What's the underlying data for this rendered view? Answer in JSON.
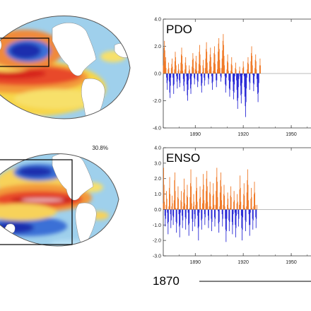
{
  "maps": [
    {
      "pct_label": ""
    },
    {
      "pct_label": "30.8%"
    }
  ],
  "timeline_label": "1870",
  "colors": {
    "positive": "#f07a28",
    "negative": "#2b2bd6",
    "ocean_base": "#9fd0ec"
  },
  "chart_data": [
    {
      "type": "bar",
      "title": "PDO",
      "ylim": [
        -4.0,
        4.0
      ],
      "ytick_labels": [
        "4.0",
        "2.0",
        "0.0",
        "-2.0",
        "-4.0"
      ],
      "ytick_values": [
        4.0,
        2.0,
        0.0,
        -2.0,
        -4.0
      ],
      "xlim": [
        1870,
        1965
      ],
      "xtick_labels": [
        "1890",
        "1920",
        "1950"
      ],
      "xtick_values": [
        1890,
        1920,
        1950
      ],
      "positive_color": "#f07a28",
      "negative_color": "#2b2bd6",
      "start_year": 1870,
      "months_per_bar": 3,
      "values": [
        0.6,
        1.5,
        1.9,
        2.4,
        1.7,
        0.9,
        1.2,
        0.4,
        -0.3,
        -0.7,
        -1.2,
        -0.5,
        0.3,
        0.8,
        0.4,
        -0.6,
        -1.4,
        -1.8,
        -0.9,
        -0.3,
        0.4,
        0.7,
        1.1,
        0.5,
        -0.3,
        -0.9,
        -1.5,
        -0.8,
        0.3,
        0.9,
        1.6,
        1.2,
        0.6,
        -0.2,
        -0.6,
        -1.1,
        -0.4,
        0.2,
        0.7,
        0.3,
        -0.5,
        -1.0,
        -0.7,
        0.2,
        0.8,
        1.4,
        1.9,
        1.3,
        0.7,
        0.2,
        -0.4,
        -0.9,
        -1.3,
        -0.6,
        0.3,
        0.8,
        1.2,
        0.6,
        -0.2,
        -0.8,
        -1.6,
        -2.0,
        -1.2,
        -0.5,
        0.2,
        0.6,
        0.3,
        -0.4,
        -1.1,
        -1.5,
        -0.8,
        -0.2,
        0.5,
        1.0,
        1.5,
        1.1,
        0.4,
        -0.3,
        -0.8,
        -0.4,
        0.3,
        0.9,
        1.3,
        0.8,
        0.2,
        -0.5,
        -1.0,
        -0.6,
        0.2,
        0.7,
        1.6,
        2.1,
        1.4,
        0.6,
        -0.2,
        -0.9,
        -1.4,
        -0.7,
        0.1,
        0.6,
        1.0,
        0.4,
        -0.3,
        -0.9,
        -0.5,
        0.4,
        1.1,
        1.8,
        2.3,
        1.6,
        0.8,
        0.2,
        -0.3,
        -0.8,
        -0.4,
        0.3,
        0.9,
        1.4,
        1.9,
        1.2,
        0.5,
        -0.2,
        -0.7,
        -1.2,
        -0.6,
        0.2,
        0.8,
        1.5,
        2.0,
        1.4,
        0.7,
        0.1,
        -0.5,
        -1.0,
        -0.5,
        0.3,
        0.9,
        1.6,
        2.2,
        2.6,
        1.8,
        1.0,
        0.4,
        -0.2,
        -0.6,
        -0.3,
        0.4,
        1.1,
        1.7,
        2.4,
        2.9,
        2.1,
        1.3,
        0.6,
        -0.2,
        -0.8,
        -1.4,
        -0.9,
        -0.3,
        0.3,
        0.9,
        1.4,
        0.8,
        0.2,
        -0.5,
        -1.1,
        -1.7,
        -1.2,
        -0.6,
        0.2,
        0.7,
        1.2,
        0.6,
        0.1,
        -0.6,
        -1.3,
        -1.9,
        -1.4,
        -0.8,
        -0.2,
        0.4,
        0.8,
        0.3,
        -0.5,
        -1.2,
        -2.0,
        -2.6,
        -1.8,
        -1.0,
        -0.4,
        0.2,
        0.5,
        -0.2,
        -0.9,
        -1.6,
        -2.2,
        -1.5,
        -0.7,
        -0.1,
        0.4,
        0.9,
        0.5,
        -0.2,
        -1.0,
        -1.7,
        -2.4,
        -3.2,
        -2.1,
        -1.1,
        -0.3,
        0.3,
        0.8,
        1.2,
        0.7,
        0.1,
        -0.6,
        -1.2,
        -0.7,
        0.1,
        0.9,
        1.5,
        2.0,
        1.3,
        0.6,
        -0.1,
        -0.7,
        -1.3,
        -0.8,
        -0.2,
        0.4,
        1.0,
        1.4,
        0.9,
        0.3,
        -0.4,
        -1.0,
        -1.5,
        -2.1,
        -1.4,
        -0.7,
        0.0,
        0.6,
        1.1,
        0.6
      ]
    },
    {
      "type": "bar",
      "title": "ENSO",
      "ylim": [
        -3.0,
        4.0
      ],
      "ytick_labels": [
        "4.0",
        "3.0",
        "2.0",
        "1.0",
        "0.0",
        "-1.0",
        "-2.0",
        "-3.0"
      ],
      "ytick_values": [
        4.0,
        3.0,
        2.0,
        1.0,
        0.0,
        -1.0,
        -2.0,
        -3.0
      ],
      "xlim": [
        1870,
        1965
      ],
      "xtick_labels": [
        "1890",
        "1920",
        "1950"
      ],
      "xtick_values": [
        1890,
        1920,
        1950
      ],
      "positive_color": "#f07a28",
      "negative_color": "#2b2bd6",
      "start_year": 1870,
      "months_per_bar": 3,
      "values": [
        0.4,
        2.7,
        1.6,
        0.5,
        -0.4,
        -1.1,
        -0.6,
        0.3,
        1.2,
        0.7,
        -0.2,
        -0.9,
        -1.6,
        -0.8,
        0.2,
        1.4,
        2.1,
        1.0,
        -0.3,
        -1.2,
        -0.7,
        0.2,
        0.9,
        0.4,
        -0.4,
        -1.0,
        -0.5,
        0.6,
        1.9,
        2.4,
        1.2,
        0.1,
        -0.8,
        -1.5,
        -0.9,
        0.1,
        0.8,
        1.5,
        0.7,
        -0.3,
        -1.1,
        -1.8,
        -1.0,
        -0.2,
        0.6,
        1.2,
        0.5,
        -0.4,
        -1.2,
        -0.7,
        0.2,
        1.1,
        2.0,
        1.3,
        0.4,
        -0.5,
        -1.3,
        -0.6,
        0.3,
        0.9,
        1.6,
        0.8,
        -0.2,
        -1.0,
        -1.7,
        -0.9,
        0.1,
        0.8,
        1.7,
        2.6,
        1.5,
        0.4,
        -0.6,
        -1.4,
        -0.8,
        0.2,
        1.0,
        0.5,
        -0.3,
        -1.1,
        -0.6,
        0.3,
        1.2,
        2.1,
        1.4,
        0.5,
        -0.4,
        -1.2,
        -2.0,
        -1.1,
        -0.2,
        0.7,
        1.5,
        0.8,
        0.1,
        -0.7,
        -1.3,
        -0.6,
        0.4,
        1.3,
        2.3,
        1.6,
        0.6,
        -0.3,
        -1.0,
        -0.5,
        0.4,
        1.2,
        2.0,
        2.5,
        1.5,
        0.5,
        -0.4,
        -1.2,
        -0.7,
        0.2,
        1.1,
        1.8,
        1.0,
        0.2,
        -0.6,
        -1.4,
        -0.8,
        0.1,
        0.9,
        1.7,
        1.0,
        0.3,
        -0.5,
        -1.1,
        -0.6,
        0.3,
        1.2,
        2.1,
        2.7,
        1.8,
        0.8,
        -0.1,
        -0.9,
        -1.5,
        -0.8,
        0.2,
        1.1,
        1.9,
        2.4,
        1.5,
        0.6,
        -0.3,
        -1.1,
        -0.6,
        0.3,
        1.0,
        1.6,
        0.9,
        0.2,
        -0.6,
        -1.3,
        -2.1,
        -1.4,
        -0.6,
        0.3,
        1.1,
        0.7,
        0.1,
        -0.7,
        -1.4,
        -0.8,
        0.1,
        0.9,
        1.5,
        0.8,
        0.0,
        -0.8,
        -1.6,
        -1.0,
        -0.3,
        0.5,
        1.2,
        0.6,
        -0.2,
        -1.0,
        -1.8,
        -1.2,
        -0.4,
        0.4,
        1.0,
        0.5,
        -0.3,
        -1.1,
        -0.6,
        0.3,
        1.3,
        2.2,
        1.4,
        0.5,
        -0.4,
        -1.2,
        -2.0,
        -1.3,
        -0.5,
        0.3,
        1.0,
        1.7,
        0.9,
        0.1,
        -0.7,
        -1.4,
        -0.8,
        0.2,
        1.1,
        1.9,
        2.6,
        1.6,
        0.6,
        -0.3,
        -1.0,
        -1.7,
        -1.0,
        -0.2,
        0.7,
        1.4,
        0.8,
        0.1,
        -0.6,
        -1.3,
        -0.7,
        0.2,
        1.0,
        1.8,
        1.1,
        0.3,
        -0.5,
        -1.2,
        -0.6,
        0.3
      ]
    }
  ]
}
